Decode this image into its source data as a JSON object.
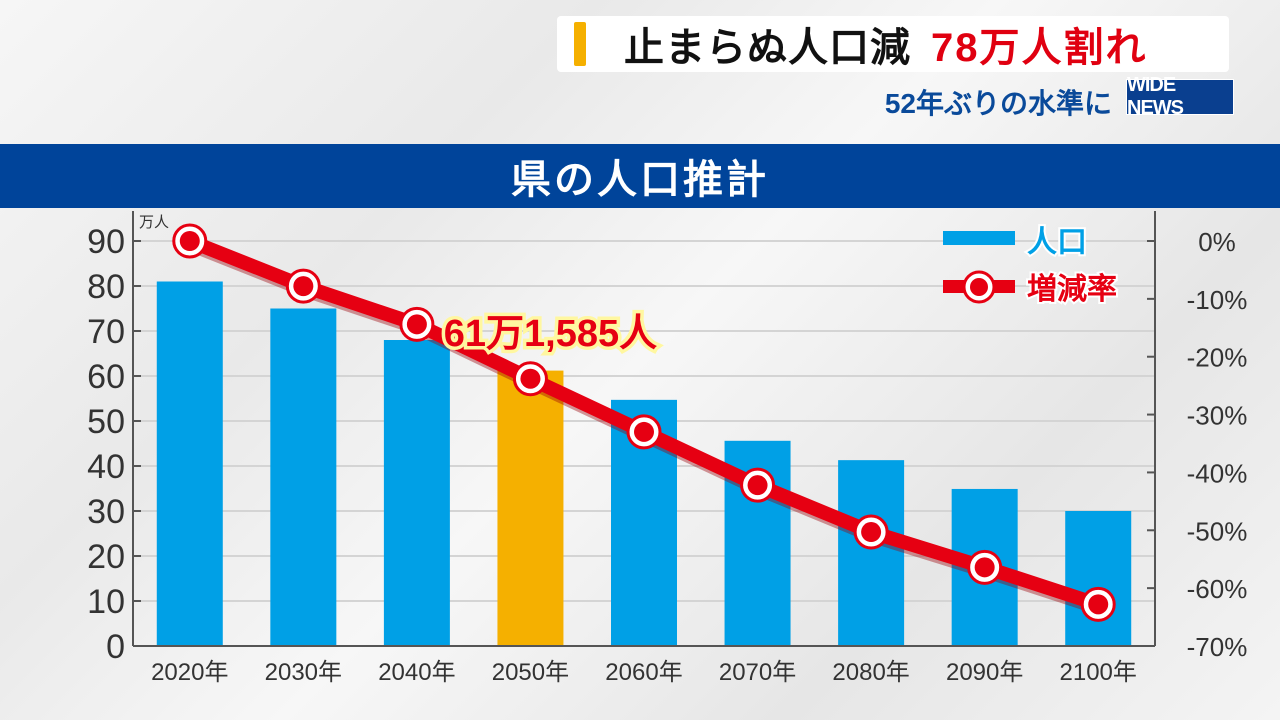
{
  "header": {
    "headline_black": "止まらぬ人口減",
    "headline_red": "78万人割れ",
    "subtitle": "52年ぶりの水準に",
    "logo": "WIDE NEWS"
  },
  "colors": {
    "bar": "#00a0e6",
    "highlight_bar": "#f5b000",
    "line": "#e60012",
    "banner": "#00449a"
  },
  "chart_data": {
    "type": "bar",
    "title": "県の人口推計",
    "categories": [
      "2020年",
      "2030年",
      "2040年",
      "2050年",
      "2060年",
      "2070年",
      "2080年",
      "2090年",
      "2100年"
    ],
    "y_unit": "万人",
    "ylim": [
      0,
      90
    ],
    "yticks": [
      "0",
      "10",
      "20",
      "30",
      "40",
      "50",
      "60",
      "70",
      "80",
      "90"
    ],
    "y2lim": [
      -70,
      0
    ],
    "y2ticks": [
      "0%",
      "-10%",
      "-20%",
      "-30%",
      "-40%",
      "-50%",
      "-60%",
      "-70%"
    ],
    "grid": true,
    "legend_placement": "top-right",
    "highlight_index": 3,
    "annotation": "61万1,585人",
    "series": [
      {
        "name": "人口",
        "type": "bar",
        "axis": "left",
        "values": [
          81,
          75,
          68,
          61.2,
          54.7,
          45.6,
          41.3,
          34.9,
          30
        ]
      },
      {
        "name": "増減率",
        "type": "line",
        "axis": "right",
        "values": [
          0,
          -7.8,
          -14.4,
          -23.8,
          -33,
          -42.2,
          -50.3,
          -56.4,
          -62.8
        ]
      }
    ]
  }
}
